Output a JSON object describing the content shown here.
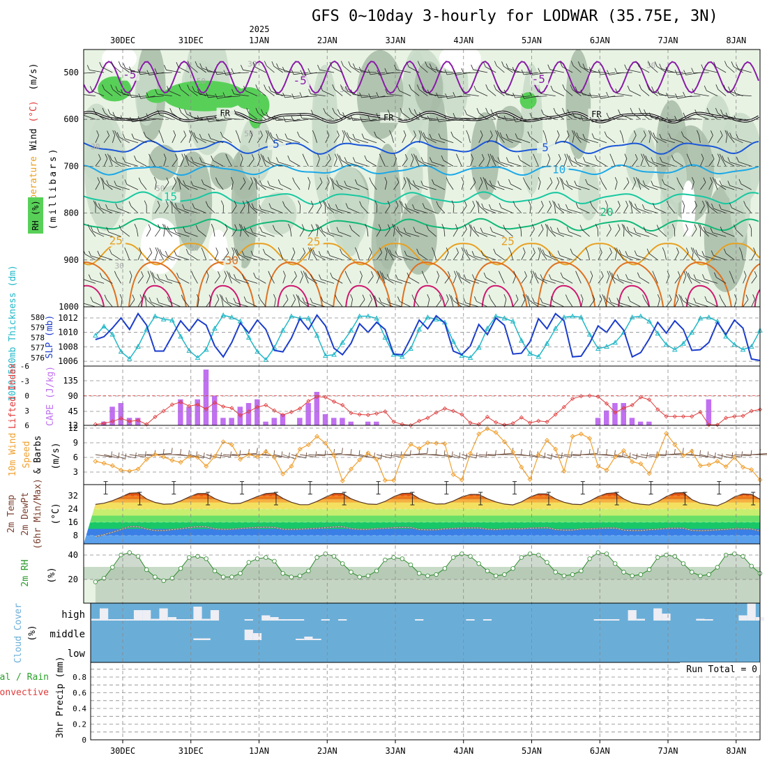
{
  "title": "GFS 0~10day 3-hourly for LODWAR (35.75E, 3N)",
  "colors": {
    "rh_light": "#e8f3e4",
    "rh_mid": "#c8dbc8",
    "rh_dark": "#a7bba7",
    "rh_green": "#58d058",
    "purple": "#8a1aa8",
    "blue": "#1a56d8",
    "lightblue": "#1aa8e8",
    "teal": "#16c8a0",
    "green_iso": "#10b878",
    "orange": "#e8a020",
    "darkorange": "#e07020",
    "magenta": "#d01870",
    "slp": "#1a3ccc",
    "thick": "#20b8c8",
    "li": "#e03a3a",
    "cape": "#c070f0",
    "wind_speed": "#f0a030",
    "barb": "#6b4a3a",
    "cloud_bg": "#6aaed8",
    "cloud_fill": "#eeeef4",
    "precip_grid": "#888888"
  },
  "chart_data": [
    {
      "name": "upper-air",
      "type": "contour",
      "ylabel_parts": [
        "Wind",
        "(m/s)",
        "(°C)",
        "Temperature"
      ],
      "ylabel2": "(millibars)",
      "rh_label": "RH (%)",
      "y_ticks": [
        "500",
        "600",
        "700",
        "800",
        "900",
        "1000"
      ],
      "x_ticks_top": [
        "30DEC",
        "31DEC",
        "1JAN",
        "2JAN",
        "3JAN",
        "4JAN",
        "5JAN",
        "6JAN",
        "7JAN",
        "8JAN"
      ],
      "year_label": "2025",
      "isotherm_labels": [
        {
          "text": "-5",
          "level": 510,
          "day": 0.1,
          "kind": "purple"
        },
        {
          "text": "-5",
          "level": 522,
          "day": 2.6,
          "kind": "purple"
        },
        {
          "text": "-5",
          "level": 519,
          "day": 6.1,
          "kind": "purple"
        },
        {
          "text": "FR",
          "level": 590,
          "day": 1.5,
          "kind": "fr"
        },
        {
          "text": "FR",
          "level": 600,
          "day": 3.9,
          "kind": "fr"
        },
        {
          "text": "FR",
          "level": 592,
          "day": 6.95,
          "kind": "fr"
        },
        {
          "text": "5",
          "level": 658,
          "day": 2.25,
          "kind": "blue"
        },
        {
          "text": "5",
          "level": 665,
          "day": 6.2,
          "kind": "blue"
        },
        {
          "text": "10",
          "level": 712,
          "day": 6.4,
          "kind": "lightblue"
        },
        {
          "text": "15",
          "level": 770,
          "day": 0.7,
          "kind": "teal"
        },
        {
          "text": "20",
          "level": 803,
          "day": 7.1,
          "kind": "green_iso"
        },
        {
          "text": "25",
          "level": 864,
          "day": -0.1,
          "kind": "orange"
        },
        {
          "text": "25",
          "level": 866,
          "day": 2.8,
          "kind": "orange"
        },
        {
          "text": "25",
          "level": 865,
          "day": 5.65,
          "kind": "orange"
        },
        {
          "text": "30",
          "level": 906,
          "day": 1.6,
          "kind": "darkorange"
        }
      ],
      "rh_labels": [
        {
          "text": "30",
          "level": 487,
          "day": 1.9
        },
        {
          "text": "30",
          "level": 542,
          "day": 3.25
        },
        {
          "text": "30",
          "level": 490,
          "day": 7.75
        },
        {
          "text": "50",
          "level": 524,
          "day": 1.15
        },
        {
          "text": "50",
          "level": 636,
          "day": 1.85
        },
        {
          "text": "30",
          "level": 664,
          "day": -0.4
        },
        {
          "text": "50",
          "level": 753,
          "day": 0.55
        },
        {
          "text": "30",
          "level": 880,
          "day": 1.05
        },
        {
          "text": "30",
          "level": 918,
          "day": -0.05
        }
      ]
    },
    {
      "name": "slp-thickness",
      "type": "line",
      "ylabel_thick": "1000-500mb Thickness (dm)",
      "ylabel_slp": "SLP (mb)",
      "thick_ticks": [
        "580",
        "579",
        "578",
        "577",
        "576"
      ],
      "slp_ticks": [
        "1012",
        "1010",
        "1008",
        "1006"
      ],
      "slp": [
        1009.0,
        1009.4,
        1010.6,
        1012.0,
        1010.4,
        1012.6,
        1011.0,
        1007.4,
        1007.4,
        1009.5,
        1011.6,
        1010.2,
        1011.8,
        1011.0,
        1008.1,
        1006.6,
        1008.6,
        1011.3,
        1009.9,
        1011.7,
        1010.4,
        1007.5,
        1007.3,
        1009.2,
        1011.9,
        1010.4,
        1012.4,
        1010.9,
        1007.8,
        1006.9,
        1008.5,
        1011.2,
        1010.0,
        1011.4,
        1010.4,
        1007.0,
        1006.9,
        1009.2,
        1011.7,
        1010.5,
        1012.3,
        1011.3,
        1007.4,
        1006.9,
        1008.1,
        1011.1,
        1009.7,
        1012.0,
        1011.0,
        1007.0,
        1007.1,
        1008.7,
        1011.9,
        1010.5,
        1012.6,
        1011.6,
        1006.6,
        1006.7,
        1008.5,
        1010.9,
        1010.0,
        1011.7,
        1010.3,
        1006.6,
        1007.2,
        1009.1,
        1011.4,
        1009.9,
        1011.6,
        1010.4,
        1007.5,
        1007.6,
        1008.6,
        1011.4,
        1009.7,
        1011.7,
        1010.6,
        1006.3,
        1006.1,
        1009.1,
        1010.9
      ],
      "thickness": [
        578.2,
        579.1,
        578.3,
        576.6,
        575.9,
        577.1,
        578.8,
        580.1,
        579.8,
        579.7,
        578.1,
        576.7,
        576.0,
        576.8,
        578.9,
        580.2,
        580.0,
        579.6,
        578.0,
        576.6,
        575.8,
        577.0,
        578.7,
        580.1,
        579.9,
        579.9,
        578.2,
        576.2,
        576.3,
        577.5,
        578.7,
        580.1,
        580.1,
        579.9,
        578.0,
        576.3,
        576.1,
        576.9,
        578.8,
        580.0,
        579.8,
        579.5,
        577.6,
        576.2,
        576.0,
        577.0,
        578.9,
        580.1,
        579.9,
        579.6,
        577.7,
        576.4,
        576.1,
        577.4,
        578.9,
        580.0,
        580.1,
        580.0,
        578.3,
        576.9,
        577.1,
        577.5,
        578.5,
        580.0,
        580.1,
        579.6,
        578.4,
        577.3,
        576.8,
        577.4,
        578.5,
        579.9,
        580.0,
        579.6,
        578.1,
        577.3,
        576.8,
        577.1,
        578.7,
        578.6,
        578.2
      ]
    },
    {
      "name": "cape-li",
      "type": "bar",
      "ylabel_li": "Lifted Index",
      "ylabel_cape": "CAPE (J/kg)",
      "li_ticks": [
        "-6",
        "-3",
        "0",
        "3",
        "6"
      ],
      "cape_ticks": [
        "135",
        "90",
        "45",
        "12"
      ],
      "cape": [
        0,
        10,
        50,
        60,
        20,
        20,
        0,
        0,
        0,
        0,
        70,
        50,
        70,
        150,
        80,
        20,
        20,
        50,
        60,
        70,
        10,
        20,
        30,
        0,
        20,
        60,
        90,
        30,
        20,
        20,
        10,
        0,
        10,
        10,
        0,
        0,
        0,
        0,
        0,
        0,
        0,
        0,
        0,
        0,
        0,
        0,
        0,
        0,
        0,
        0,
        0,
        0,
        0,
        0,
        0,
        0,
        0,
        0,
        0,
        20,
        40,
        60,
        60,
        20,
        10,
        10,
        0,
        0,
        0,
        0,
        0,
        0,
        70,
        0,
        0,
        0,
        0,
        0,
        0,
        0,
        0
      ],
      "li": [
        5.8,
        5.6,
        5.2,
        4.6,
        5.2,
        5.0,
        5.8,
        4.3,
        3.1,
        1.8,
        1.3,
        2.1,
        1.8,
        2.7,
        1.4,
        2.2,
        2.5,
        4.0,
        3.2,
        2.3,
        1.9,
        3.0,
        3.9,
        3.3,
        2.6,
        1.1,
        0.2,
        0.3,
        1.2,
        1.9,
        3.5,
        3.8,
        3.9,
        3.6,
        3.2,
        5.3,
        5.8,
        6.0,
        5.1,
        4.5,
        3.4,
        2.6,
        3.1,
        3.8,
        5.5,
        5.8,
        4.3,
        5.4,
        5.9,
        5.6,
        4.4,
        5.5,
        5.1,
        5.3,
        3.8,
        2.3,
        0.6,
        0.1,
        0.0,
        0.2,
        1.6,
        3.4,
        2.5,
        1.9,
        0.3,
        0.8,
        2.8,
        4.2,
        4.2,
        4.2,
        4.2,
        3.3,
        5.9,
        5.9,
        4.5,
        4.2,
        4.1,
        3.1,
        2.8,
        3.0,
        5.7
      ]
    },
    {
      "name": "wind-10m",
      "type": "line",
      "ylabel_a": "10m Wind",
      "ylabel_b": "Speed",
      "ylabel_c": "& Barbs",
      "ylabel_unit": "(m/s)",
      "ticks": [
        "12",
        "9",
        "6",
        "3"
      ],
      "speed": [
        5.2,
        4.8,
        4.3,
        3.4,
        3.2,
        3.6,
        5.6,
        6.6,
        6.1,
        5.4,
        5.0,
        6.2,
        6.0,
        4.2,
        6.2,
        9.2,
        8.6,
        5.6,
        6.6,
        6.1,
        7.2,
        6.0,
        2.6,
        4.2,
        7.7,
        8.6,
        10.3,
        8.9,
        6.4,
        1.2,
        3.6,
        5.5,
        6.9,
        5.6,
        1.3,
        1.3,
        6.1,
        8.7,
        7.8,
        9.0,
        8.9,
        8.8,
        2.5,
        1.4,
        6.8,
        10.8,
        11.9,
        11.1,
        9.2,
        7.1,
        4.0,
        1.5,
        6.5,
        9.5,
        7.7,
        3.2,
        10.3,
        10.8,
        9.9,
        4.2,
        3.4,
        6.1,
        7.4,
        5.1,
        4.7,
        2.7,
        6.5,
        10.9,
        8.6,
        6.4,
        7.3,
        4.3,
        4.5,
        5.2,
        4.1,
        6.0,
        4.0,
        3.5,
        1.4,
        5.4,
        5.2
      ],
      "barb_dir": [
        140,
        150,
        160,
        150,
        140,
        130,
        120,
        110,
        120,
        130,
        140,
        150,
        160,
        150,
        140,
        130,
        120,
        110,
        120,
        130,
        140,
        150,
        160,
        150,
        140,
        130,
        120,
        110,
        120,
        130,
        140,
        150,
        160,
        150,
        140,
        130,
        120,
        110,
        120,
        130,
        140,
        150,
        160,
        150,
        140,
        130,
        120,
        110,
        120,
        130,
        140,
        150,
        160,
        150,
        140,
        130,
        120,
        110,
        120,
        130,
        140,
        150,
        160,
        150,
        140,
        130,
        120,
        110,
        120,
        130,
        140,
        150,
        160,
        150,
        140,
        130,
        120,
        110,
        120,
        130,
        140
      ]
    },
    {
      "name": "temp-2m",
      "type": "area",
      "ylabel_a": "2m Temp",
      "ylabel_b": "2m DewPt",
      "ylabel_c": "(6hr Min/Max)",
      "ylabel_unit": "(°C)",
      "ticks": [
        "32",
        "24",
        "16",
        "8"
      ],
      "temp": [
        26.8,
        27.5,
        29.0,
        31.2,
        33.5,
        33.8,
        30.1,
        28.0,
        26.9,
        27.1,
        28.9,
        31.3,
        33.3,
        33.4,
        30.3,
        28.3,
        27.2,
        27.4,
        29.4,
        31.6,
        33.3,
        33.7,
        30.4,
        28.1,
        26.6,
        26.6,
        28.6,
        31.1,
        33.4,
        33.4,
        30.2,
        28.3,
        27.0,
        26.8,
        28.6,
        31.4,
        33.4,
        33.6,
        30.3,
        28.3,
        27.0,
        27.1,
        28.8,
        31.3,
        32.8,
        32.8,
        30.2,
        28.3,
        27.0,
        26.5,
        28.3,
        31.2,
        33.1,
        33.1,
        30.1,
        28.1,
        26.9,
        26.7,
        28.7,
        31.5,
        33.4,
        33.8,
        30.1,
        27.8,
        26.9,
        26.5,
        28.4,
        31.5,
        33.7,
        33.9,
        29.7,
        27.5,
        26.7,
        26.0,
        28.2,
        31.3,
        33.1,
        32.8,
        29.9,
        26.7,
        26.7
      ],
      "dewpt": [
        7.3,
        8.5,
        10.0,
        11.6,
        13.4,
        13.3,
        11.9,
        11.0,
        11.0,
        11.6,
        12.0,
        12.8,
        13.3,
        13.2,
        12.0,
        11.7,
        11.8,
        12.2,
        12.6,
        12.9,
        13.0,
        12.9,
        11.8,
        11.7,
        11.8,
        12.1,
        12.3,
        12.7,
        13.1,
        13.3,
        12.1,
        11.7,
        11.7,
        12.1,
        12.3,
        12.7,
        12.9,
        12.8,
        11.6,
        11.4,
        11.5,
        12.0,
        12.2,
        12.5,
        12.6,
        12.6,
        11.8,
        11.6,
        11.9,
        12.0,
        12.0,
        12.4,
        12.6,
        12.7,
        11.6,
        11.3,
        11.3,
        11.9,
        12.0,
        12.2,
        12.5,
        12.5,
        11.3,
        11.0,
        11.0,
        11.5,
        11.8,
        12.2,
        12.4,
        12.4,
        11.1,
        10.9,
        11.1,
        11.4,
        11.7,
        12.0,
        12.0,
        11.9,
        10.7,
        10.6,
        10.4
      ]
    },
    {
      "name": "rh-2m",
      "type": "area",
      "ylabel_a": "2m RH",
      "ylabel_unit": "(%)",
      "ticks": [
        "40",
        "20"
      ],
      "rh": [
        18,
        21,
        30,
        40,
        42,
        39,
        28,
        22,
        19,
        21,
        29,
        38,
        39,
        37,
        27,
        22,
        22,
        25,
        34,
        37,
        38,
        35,
        25,
        22,
        23,
        27,
        38,
        41,
        39,
        33,
        26,
        22,
        23,
        27,
        36,
        38,
        37,
        32,
        25,
        23,
        24,
        29,
        38,
        41,
        39,
        33,
        27,
        23,
        24,
        29,
        38,
        41,
        40,
        34,
        26,
        23,
        24,
        27,
        37,
        42,
        41,
        33,
        26,
        23,
        24,
        28,
        38,
        40,
        39,
        33,
        26,
        23,
        24,
        30,
        40,
        41,
        39,
        31,
        25,
        22,
        22
      ]
    },
    {
      "name": "cloud-cover",
      "type": "bar",
      "ylabel_a": "Cloud Cover",
      "ylabel_unit": "(%)",
      "levels": [
        "high",
        "middle",
        "low"
      ],
      "high": [
        10,
        70,
        5,
        5,
        5,
        60,
        60,
        10,
        70,
        20,
        5,
        5,
        80,
        10,
        60,
        0,
        0,
        0,
        5,
        0,
        30,
        20,
        5,
        5,
        5,
        0,
        0,
        5,
        0,
        5,
        0,
        0,
        0,
        0,
        0,
        0,
        0,
        0,
        5,
        0,
        0,
        0,
        0,
        0,
        5,
        0,
        5,
        0,
        0,
        0,
        0,
        0,
        0,
        0,
        0,
        0,
        0,
        0,
        0,
        5,
        5,
        5,
        0,
        60,
        10,
        0,
        70,
        40,
        0,
        0,
        0,
        10,
        5,
        0,
        0,
        0,
        30,
        100,
        20,
        70,
        100
      ],
      "middle": [
        0,
        0,
        0,
        0,
        0,
        0,
        0,
        0,
        0,
        0,
        0,
        0,
        10,
        10,
        0,
        0,
        0,
        0,
        60,
        40,
        0,
        0,
        0,
        0,
        5,
        20,
        5,
        0,
        0,
        0,
        0,
        0,
        0,
        0,
        0,
        0,
        0,
        0,
        0,
        0,
        0,
        0,
        0,
        0,
        0,
        0,
        0,
        0,
        0,
        0,
        0,
        0,
        0,
        0,
        0,
        0,
        0,
        0,
        0,
        0,
        0,
        0,
        0,
        0,
        0,
        0,
        0,
        0,
        0,
        0,
        0,
        0,
        0,
        0,
        0,
        0,
        0,
        0,
        0,
        0,
        0
      ],
      "low": [
        0,
        0,
        0,
        0,
        0,
        0,
        0,
        0,
        0,
        0,
        0,
        0,
        0,
        0,
        0,
        0,
        0,
        0,
        0,
        0,
        0,
        0,
        0,
        0,
        0,
        0,
        0,
        0,
        0,
        0,
        0,
        0,
        0,
        0,
        0,
        0,
        0,
        0,
        0,
        0,
        0,
        0,
        0,
        0,
        0,
        0,
        0,
        0,
        0,
        0,
        0,
        0,
        0,
        0,
        0,
        0,
        0,
        0,
        0,
        0,
        0,
        0,
        0,
        0,
        0,
        0,
        0,
        0,
        0,
        0,
        0,
        0,
        0,
        0,
        0,
        0,
        0,
        0,
        0,
        0,
        0
      ]
    },
    {
      "name": "precip",
      "type": "bar",
      "ylabel_a": "tal / Rain",
      "ylabel_b": "Convective",
      "ylabel_c": "3hr Precip (mm)",
      "ticks": [
        "0.8",
        "0.6",
        "0.4",
        "0.2",
        "0"
      ],
      "run_total_label": "Run Total = 0",
      "x_ticks_bottom": [
        "30DEC",
        "31DEC",
        "1JAN",
        "2JAN",
        "3JAN",
        "4JAN",
        "5JAN",
        "6JAN",
        "7JAN",
        "8JAN"
      ],
      "values": []
    }
  ]
}
